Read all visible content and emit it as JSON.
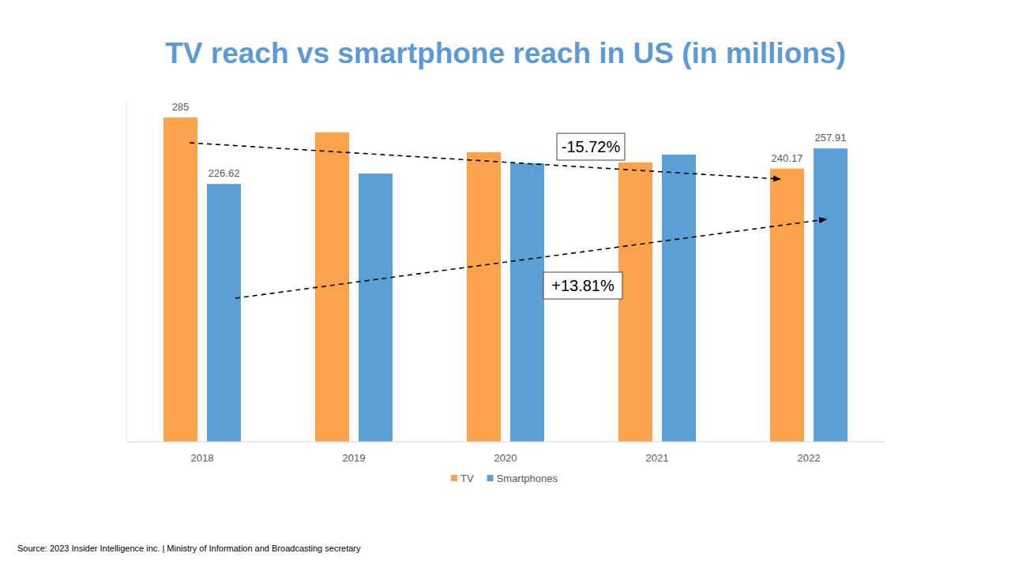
{
  "chart_data": {
    "type": "bar",
    "title": "TV reach vs smartphone reach in US (in millions)",
    "categories": [
      "2018",
      "2019",
      "2020",
      "2021",
      "2022"
    ],
    "series": [
      {
        "name": "TV",
        "color": "#fba24c",
        "values": [
          285,
          272,
          254.5,
          245.5,
          240.17
        ],
        "value_labels": [
          "285",
          null,
          null,
          null,
          "240.17"
        ]
      },
      {
        "name": "Smartphones",
        "color": "#5a9fd6",
        "values": [
          226.62,
          235.8,
          244.8,
          252.4,
          257.91
        ],
        "value_labels": [
          "226.62",
          null,
          null,
          null,
          "257.91"
        ]
      }
    ],
    "ylim": [
      0,
      300
    ],
    "tick_labels": "x",
    "data_labels": true,
    "grid": false,
    "legend": "bottom",
    "annotations": [
      "-15.72%",
      "+13.81%"
    ],
    "source": "Source: 2023 Insider Intelligence inc. | Ministry of Information and Broadcasting secretary"
  }
}
